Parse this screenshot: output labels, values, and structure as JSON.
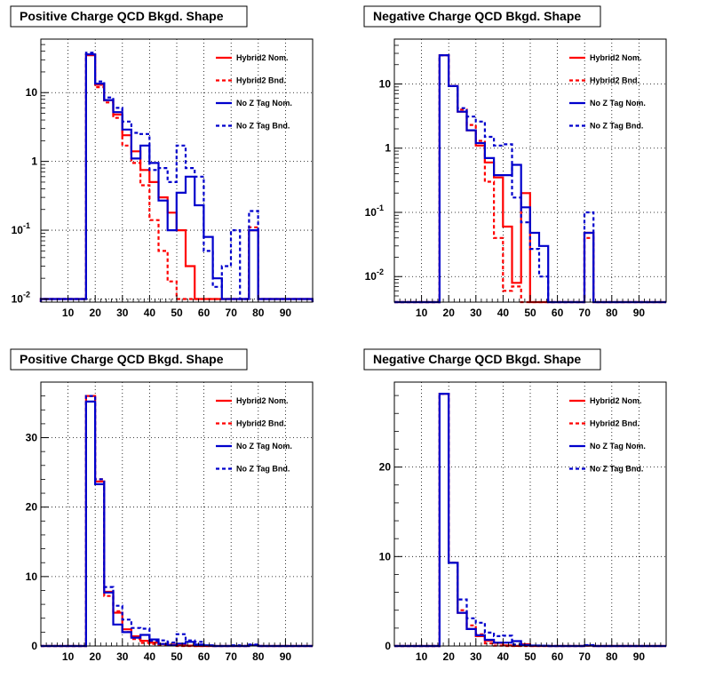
{
  "chart_data": [
    {
      "type": "histogram",
      "title": "Positive Charge QCD Bkgd. Shape",
      "yscale": "log",
      "ylim": [
        0.009,
        60
      ],
      "xlim": [
        0,
        100
      ],
      "bin_width": 3.33,
      "xticks": [
        "10",
        "20",
        "30",
        "40",
        "50",
        "60",
        "70",
        "80",
        "90"
      ],
      "xtick_values": [
        10,
        20,
        30,
        40,
        50,
        60,
        70,
        80,
        90
      ],
      "yticks": [
        {
          "v": 0.01,
          "b": "10",
          "e": "-2"
        },
        {
          "v": 0.1,
          "b": "10",
          "e": "-1"
        },
        {
          "v": 1,
          "b": "1",
          "e": ""
        },
        {
          "v": 10,
          "b": "10",
          "e": ""
        }
      ],
      "grid": true,
      "legend_position": "top-right",
      "series": [
        {
          "name": "Hybrid2 Nom.",
          "style": "solid",
          "color": "#ff0000",
          "values": [
            0.01,
            0.01,
            0.01,
            0.01,
            0.01,
            35,
            13,
            7.8,
            4.8,
            2.4,
            1.4,
            0.75,
            0.5,
            0.3,
            0.18,
            0.1,
            0.03,
            0.01,
            0.01,
            0.01,
            0.01,
            0.01,
            0.01,
            0.1,
            0.01,
            0.01,
            0.01,
            0.01,
            0.01,
            0.01
          ]
        },
        {
          "name": "Hybrid2 Bnd.",
          "style": "dashed",
          "color": "#ff0000",
          "values": [
            0.01,
            0.01,
            0.01,
            0.01,
            0.01,
            36,
            12,
            7.2,
            4.3,
            1.7,
            0.95,
            0.45,
            0.14,
            0.05,
            0.018,
            0.01,
            0.01,
            0.01,
            0.01,
            0.01,
            0.01,
            0.01,
            0.01,
            0.11,
            0.01,
            0.01,
            0.01,
            0.01,
            0.01,
            0.01
          ]
        },
        {
          "name": "No Z Tag Nom.",
          "style": "solid",
          "color": "#0000cc",
          "values": [
            0.01,
            0.01,
            0.01,
            0.01,
            0.01,
            36,
            13.5,
            7.8,
            5.2,
            2.9,
            1.1,
            1.7,
            0.95,
            0.27,
            0.1,
            0.35,
            0.6,
            0.23,
            0.08,
            0.02,
            0.01,
            0.01,
            0.01,
            0.1,
            0.01,
            0.01,
            0.01,
            0.01,
            0.01,
            0.01
          ]
        },
        {
          "name": "No Z Tag Bnd.",
          "style": "dashed",
          "color": "#0000cc",
          "values": [
            0.01,
            0.01,
            0.01,
            0.01,
            0.01,
            38,
            14.5,
            8.5,
            6,
            3.8,
            2.6,
            2.5,
            0.75,
            0.8,
            0.5,
            1.7,
            0.8,
            0.6,
            0.05,
            0.015,
            0.03,
            0.1,
            0.01,
            0.19,
            0.01,
            0.01,
            0.01,
            0.01,
            0.01,
            0.01
          ]
        }
      ]
    },
    {
      "type": "histogram",
      "title": "Negative Charge QCD Bkgd. Shape",
      "yscale": "log",
      "ylim": [
        0.004,
        50
      ],
      "xlim": [
        0,
        100
      ],
      "bin_width": 3.33,
      "xticks": [
        "10",
        "20",
        "30",
        "40",
        "50",
        "60",
        "70",
        "80",
        "90"
      ],
      "xtick_values": [
        10,
        20,
        30,
        40,
        50,
        60,
        70,
        80,
        90
      ],
      "yticks": [
        {
          "v": 0.01,
          "b": "10",
          "e": "-2"
        },
        {
          "v": 0.1,
          "b": "10",
          "e": "-1"
        },
        {
          "v": 1,
          "b": "1",
          "e": ""
        },
        {
          "v": 10,
          "b": "10",
          "e": ""
        }
      ],
      "grid": true,
      "legend_position": "top-right",
      "series": [
        {
          "name": "Hybrid2 Nom.",
          "style": "solid",
          "color": "#ff0000",
          "values": [
            0.004,
            0.004,
            0.004,
            0.004,
            0.004,
            28,
            9.3,
            3.7,
            1.9,
            1.1,
            0.6,
            0.35,
            0.06,
            0.008,
            0.2,
            0.004,
            0.004,
            0.004,
            0.004,
            0.004,
            0.004,
            0.048,
            0.004,
            0.004,
            0.004,
            0.004,
            0.004,
            0.004,
            0.004,
            0.004
          ]
        },
        {
          "name": "Hybrid2 Bnd.",
          "style": "dashed",
          "color": "#ff0000",
          "values": [
            0.004,
            0.004,
            0.004,
            0.004,
            0.004,
            28,
            9.3,
            4,
            2.3,
            1.3,
            0.3,
            0.04,
            0.006,
            0.007,
            0.004,
            0.004,
            0.004,
            0.004,
            0.004,
            0.004,
            0.004,
            0.04,
            0.004,
            0.004,
            0.004,
            0.004,
            0.004,
            0.004,
            0.004,
            0.004
          ]
        },
        {
          "name": "No Z Tag Nom.",
          "style": "solid",
          "color": "#0000cc",
          "values": [
            0.004,
            0.004,
            0.004,
            0.004,
            0.004,
            28,
            9.3,
            3.7,
            1.9,
            1.2,
            0.7,
            0.38,
            0.38,
            0.55,
            0.12,
            0.048,
            0.03,
            0.004,
            0.004,
            0.004,
            0.004,
            0.048,
            0.004,
            0.004,
            0.004,
            0.004,
            0.004,
            0.004,
            0.004,
            0.004
          ]
        },
        {
          "name": "No Z Tag Bnd.",
          "style": "dashed",
          "color": "#0000cc",
          "values": [
            0.004,
            0.004,
            0.004,
            0.004,
            0.004,
            28,
            9.3,
            4.2,
            3.1,
            2.6,
            1.5,
            1.1,
            1.15,
            0.17,
            0.07,
            0.027,
            0.01,
            0.004,
            0.004,
            0.004,
            0.004,
            0.1,
            0.004,
            0.004,
            0.004,
            0.004,
            0.004,
            0.004,
            0.004,
            0.004
          ]
        }
      ]
    },
    {
      "type": "histogram",
      "title": "Positive Charge QCD Bkgd. Shape",
      "yscale": "linear",
      "ylim": [
        0,
        38
      ],
      "xlim": [
        0,
        100
      ],
      "bin_width": 3.33,
      "xticks": [
        "10",
        "20",
        "30",
        "40",
        "50",
        "60",
        "70",
        "80",
        "90"
      ],
      "xtick_values": [
        10,
        20,
        30,
        40,
        50,
        60,
        70,
        80,
        90
      ],
      "yticks": [
        {
          "v": 0,
          "b": "0",
          "e": ""
        },
        {
          "v": 10,
          "b": "10",
          "e": ""
        },
        {
          "v": 20,
          "b": "20",
          "e": ""
        },
        {
          "v": 30,
          "b": "30",
          "e": ""
        }
      ],
      "grid": true,
      "legend_position": "top-right",
      "series": [
        {
          "name": "Hybrid2 Nom.",
          "style": "solid",
          "color": "#ff0000",
          "values": [
            0,
            0,
            0,
            0,
            0,
            36,
            23.7,
            7.8,
            4.8,
            2.4,
            1.4,
            0.75,
            0.5,
            0.3,
            0.18,
            0.1,
            0.05,
            0,
            0,
            0,
            0,
            0,
            0,
            0.1,
            0,
            0,
            0,
            0,
            0,
            0
          ]
        },
        {
          "name": "Hybrid2 Bnd.",
          "style": "dashed",
          "color": "#ff0000",
          "values": [
            0,
            0,
            0,
            0,
            0,
            36,
            24,
            7.2,
            5,
            2,
            1,
            0.45,
            0.3,
            0.2,
            0.1,
            0,
            0,
            0,
            0,
            0,
            0,
            0,
            0,
            0.1,
            0,
            0,
            0,
            0,
            0,
            0
          ]
        },
        {
          "name": "No Z Tag Nom.",
          "style": "solid",
          "color": "#0000cc",
          "values": [
            0,
            0,
            0,
            0,
            0,
            35.2,
            23.3,
            7.7,
            3.1,
            2,
            1.2,
            1.6,
            0.95,
            0.3,
            0.1,
            0.35,
            0.6,
            0.2,
            0.1,
            0,
            0,
            0,
            0,
            0.1,
            0,
            0,
            0,
            0,
            0,
            0
          ]
        },
        {
          "name": "No Z Tag Bnd.",
          "style": "dashed",
          "color": "#0000cc",
          "values": [
            0,
            0,
            0,
            0,
            0,
            36,
            24,
            8.5,
            5.8,
            3.8,
            2.6,
            2.5,
            0.75,
            0.8,
            0.5,
            1.7,
            0.8,
            0.6,
            0.05,
            0,
            0,
            0.1,
            0,
            0.2,
            0,
            0,
            0,
            0,
            0,
            0
          ]
        }
      ]
    },
    {
      "type": "histogram",
      "title": "Negative Charge QCD Bkgd. Shape",
      "yscale": "linear",
      "ylim": [
        0,
        29.5
      ],
      "xlim": [
        0,
        100
      ],
      "bin_width": 3.33,
      "xticks": [
        "10",
        "20",
        "30",
        "40",
        "50",
        "60",
        "70",
        "80",
        "90"
      ],
      "xtick_values": [
        10,
        20,
        30,
        40,
        50,
        60,
        70,
        80,
        90
      ],
      "yticks": [
        {
          "v": 0,
          "b": "0",
          "e": ""
        },
        {
          "v": 10,
          "b": "10",
          "e": ""
        },
        {
          "v": 20,
          "b": "20",
          "e": ""
        }
      ],
      "grid": true,
      "legend_position": "top-right",
      "series": [
        {
          "name": "Hybrid2 Nom.",
          "style": "solid",
          "color": "#ff0000",
          "values": [
            0,
            0,
            0,
            0,
            0,
            28.2,
            9.3,
            3.7,
            1.9,
            1.1,
            0.6,
            0.35,
            0.06,
            0.01,
            0.2,
            0,
            0,
            0,
            0,
            0,
            0,
            0.05,
            0,
            0,
            0,
            0,
            0,
            0,
            0,
            0
          ]
        },
        {
          "name": "Hybrid2 Bnd.",
          "style": "dashed",
          "color": "#ff0000",
          "values": [
            0,
            0,
            0,
            0,
            0,
            28.2,
            9.3,
            4,
            2.3,
            1.3,
            0.3,
            0.04,
            0,
            0,
            0,
            0,
            0,
            0,
            0,
            0,
            0,
            0.04,
            0,
            0,
            0,
            0,
            0,
            0,
            0,
            0
          ]
        },
        {
          "name": "No Z Tag Nom.",
          "style": "solid",
          "color": "#0000cc",
          "values": [
            0,
            0,
            0,
            0,
            0,
            28.2,
            9.3,
            3.7,
            1.9,
            1.2,
            0.7,
            0.38,
            0.38,
            0.55,
            0.12,
            0.05,
            0.03,
            0,
            0,
            0,
            0,
            0.05,
            0,
            0,
            0,
            0,
            0,
            0,
            0,
            0
          ]
        },
        {
          "name": "No Z Tag Bnd.",
          "style": "dashed",
          "color": "#0000cc",
          "values": [
            0,
            0,
            0,
            0,
            0,
            28.2,
            9.3,
            5.2,
            3.1,
            2.6,
            1.5,
            1.1,
            1.15,
            0.17,
            0.07,
            0.03,
            0.01,
            0,
            0,
            0,
            0,
            0.1,
            0,
            0,
            0,
            0,
            0,
            0,
            0,
            0
          ]
        }
      ]
    }
  ]
}
